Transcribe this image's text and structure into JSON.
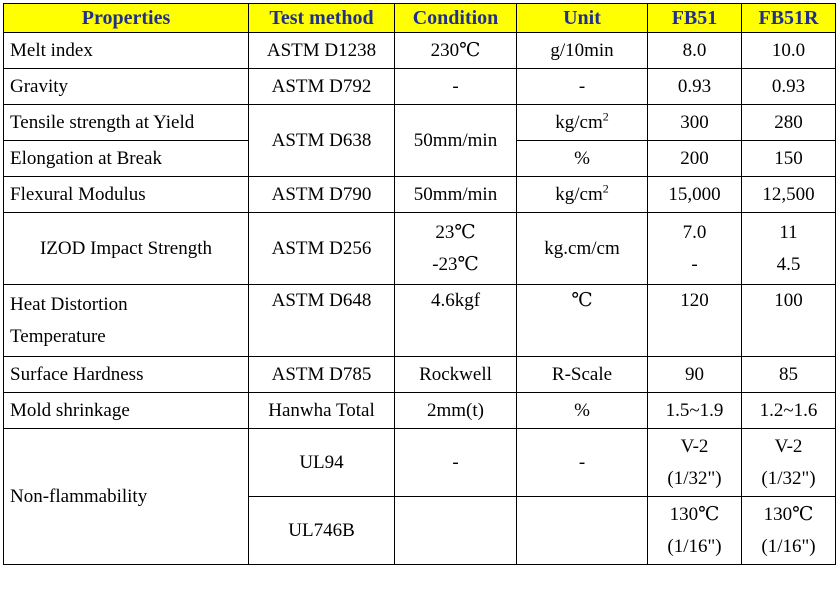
{
  "headers": [
    "Properties",
    "Test method",
    "Condition",
    "Unit",
    "FB51",
    "FB51R"
  ],
  "rows": {
    "melt": {
      "property": "Melt index",
      "method": "ASTM D1238",
      "condition": "230℃",
      "unit": "g/10min",
      "fb51": "8.0",
      "fb51r": "10.0"
    },
    "gravity": {
      "property": "Gravity",
      "method": "ASTM D792",
      "condition": "-",
      "unit": "-",
      "fb51": "0.93",
      "fb51r": "0.93"
    },
    "tensile": {
      "property": "Tensile strength at Yield",
      "method": "ASTM D638",
      "condition": "50mm/min",
      "unit_base": "kg/cm",
      "unit_sup": "2",
      "fb51": "300",
      "fb51r": "280"
    },
    "elongation": {
      "property": "Elongation at Break",
      "unit": "%",
      "fb51": "200",
      "fb51r": "150"
    },
    "flexural": {
      "property": "Flexural Modulus",
      "method": "ASTM D790",
      "condition": "50mm/min",
      "unit_base": "kg/cm",
      "unit_sup": "2",
      "fb51": "15,000",
      "fb51r": "12,500"
    },
    "izod": {
      "property": "IZOD Impact Strength",
      "method": "ASTM D256",
      "condition_1": "23℃",
      "condition_2": "-23℃",
      "unit": "kg.cm/cm",
      "fb51_1": "7.0",
      "fb51_2": "-",
      "fb51r_1": "11",
      "fb51r_2": "4.5"
    },
    "heat": {
      "property_1": "Heat Distortion",
      "property_2": "Temperature",
      "method": "ASTM D648",
      "condition": "4.6kgf",
      "unit": "℃",
      "fb51": "120",
      "fb51r": "100"
    },
    "hardness": {
      "property": "Surface Hardness",
      "method": "ASTM D785",
      "condition": "Rockwell",
      "unit": "R-Scale",
      "fb51": "90",
      "fb51r": "85"
    },
    "shrinkage": {
      "property": "Mold shrinkage",
      "method": "Hanwha Total",
      "condition": "2mm(t)",
      "unit": "%",
      "fb51": "1.5~1.9",
      "fb51r": "1.2~1.6"
    },
    "flame": {
      "property": "Non-flammability",
      "ul94": {
        "method": "UL94",
        "condition": "-",
        "unit": "-",
        "fb51_1": "V-2",
        "fb51_2": "(1/32\")",
        "fb51r_1": "V-2",
        "fb51r_2": "(1/32\")"
      },
      "ul746b": {
        "method": "UL746B",
        "fb51_1": "130℃",
        "fb51_2": "(1/16\")",
        "fb51r_1": "130℃",
        "fb51r_2": "(1/16\")"
      }
    }
  }
}
